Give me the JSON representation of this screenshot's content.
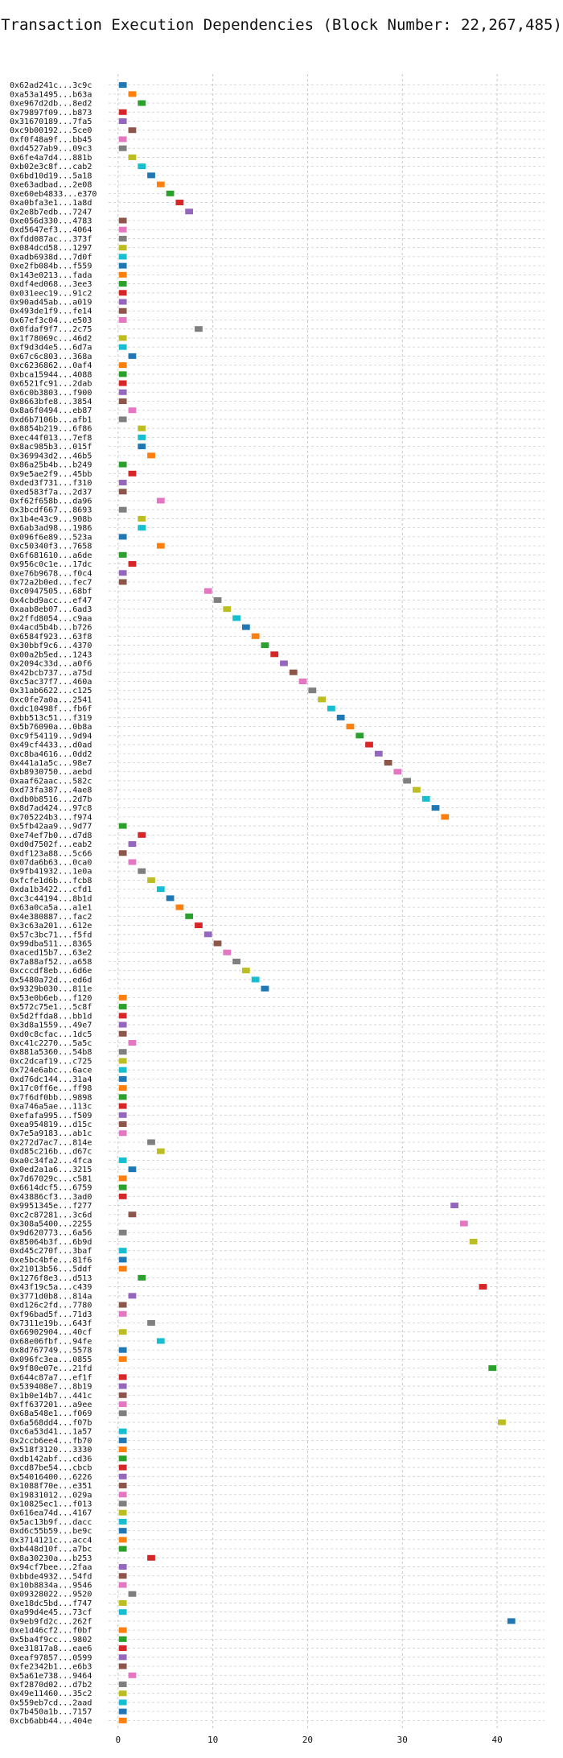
{
  "chart_data": {
    "type": "gantt",
    "title": "Transaction Execution Dependencies (Block Number: 22,267,485)",
    "xlim": [
      -1,
      45
    ],
    "xticks": [
      0,
      10,
      20,
      30,
      40
    ],
    "grid": true,
    "palette": [
      "#1f77b4",
      "#ff7f0e",
      "#2ca02c",
      "#d62728",
      "#9467bd",
      "#8c564b",
      "#e377c2",
      "#7f7f7f",
      "#bcbd22",
      "#17becf"
    ],
    "transactions": [
      {
        "label": "0x62ad241c...3c9c",
        "start": 0
      },
      {
        "label": "0xa53a1495...b63a",
        "start": 1
      },
      {
        "label": "0xe967d2db...8ed2",
        "start": 2
      },
      {
        "label": "0x79897f09...b873",
        "start": 0
      },
      {
        "label": "0x31670189...7fa5",
        "start": 0
      },
      {
        "label": "0xc9b00192...5ce0",
        "start": 1
      },
      {
        "label": "0xf0f48a9f...bb45",
        "start": 0
      },
      {
        "label": "0xd4527ab9...09c3",
        "start": 0
      },
      {
        "label": "0x6fe4a7d4...881b",
        "start": 1
      },
      {
        "label": "0xb02e3c8f...cab2",
        "start": 2
      },
      {
        "label": "0x6bd10d19...5a18",
        "start": 3
      },
      {
        "label": "0xe63adbad...2e08",
        "start": 4
      },
      {
        "label": "0xe60eb4833...e370",
        "start": 5
      },
      {
        "label": "0xa0bfa3e1...1a8d",
        "start": 6
      },
      {
        "label": "0x2e8b7edb...7247",
        "start": 7
      },
      {
        "label": "0xe056d330...4783",
        "start": 0
      },
      {
        "label": "0xd5647ef3...4064",
        "start": 0
      },
      {
        "label": "0xfdd087ac...373f",
        "start": 0
      },
      {
        "label": "0x084dcd58...1297",
        "start": 0
      },
      {
        "label": "0xadb6938d...7d0f",
        "start": 0
      },
      {
        "label": "0xe2fb084b...f559",
        "start": 0
      },
      {
        "label": "0x143e0213...fada",
        "start": 0
      },
      {
        "label": "0xdf4ed068...3ee3",
        "start": 0
      },
      {
        "label": "0x031eec19...91c2",
        "start": 0
      },
      {
        "label": "0x90ad45ab...a019",
        "start": 0
      },
      {
        "label": "0x493de1f9...fe14",
        "start": 0
      },
      {
        "label": "0x67ef3c04...e503",
        "start": 0
      },
      {
        "label": "0x0fdaf9f7...2c75",
        "start": 8
      },
      {
        "label": "0x1f78069c...46d2",
        "start": 0
      },
      {
        "label": "0xf9d3d4e5...6d7a",
        "start": 0
      },
      {
        "label": "0x67c6c803...368a",
        "start": 1
      },
      {
        "label": "0xc6236862...0af4",
        "start": 0
      },
      {
        "label": "0xbca15944...4088",
        "start": 0
      },
      {
        "label": "0x6521fc91...2dab",
        "start": 0
      },
      {
        "label": "0x6c0b3803...f900",
        "start": 0
      },
      {
        "label": "0x8663bfe8...3854",
        "start": 0
      },
      {
        "label": "0x8a6f0494...eb87",
        "start": 1
      },
      {
        "label": "0xd6b7106b...afb1",
        "start": 0
      },
      {
        "label": "0x8854b219...6f86",
        "start": 2
      },
      {
        "label": "0xec44f013...7ef8",
        "start": 2
      },
      {
        "label": "0x8ac985b3...015f",
        "start": 2
      },
      {
        "label": "0x369943d2...46b5",
        "start": 3
      },
      {
        "label": "0x86a25b4b...b249",
        "start": 0
      },
      {
        "label": "0x9e5ae2f9...45bb",
        "start": 1
      },
      {
        "label": "0xded3f731...f310",
        "start": 0
      },
      {
        "label": "0xed583f7a...2d37",
        "start": 0
      },
      {
        "label": "0xf62f658b...da96",
        "start": 4
      },
      {
        "label": "0x3bcdf667...8693",
        "start": 0
      },
      {
        "label": "0x1b4e43c9...908b",
        "start": 2
      },
      {
        "label": "0x6ab3ad98...1986",
        "start": 2
      },
      {
        "label": "0x096f6e89...523a",
        "start": 0
      },
      {
        "label": "0xc50340f3...7658",
        "start": 4
      },
      {
        "label": "0x6f681610...a6de",
        "start": 0
      },
      {
        "label": "0x956c0c1e...17dc",
        "start": 1
      },
      {
        "label": "0xe76b9678...f0c4",
        "start": 0
      },
      {
        "label": "0x72a2b0ed...fec7",
        "start": 0
      },
      {
        "label": "0xc0947505...68bf",
        "start": 9
      },
      {
        "label": "0x4cbd9acc...ef47",
        "start": 10
      },
      {
        "label": "0xaab8eb07...6ad3",
        "start": 11
      },
      {
        "label": "0x2ffd8054...c9aa",
        "start": 12
      },
      {
        "label": "0x4acd5b4b...b726",
        "start": 13
      },
      {
        "label": "0x6584f923...63f8",
        "start": 14
      },
      {
        "label": "0x30bbf9c6...4370",
        "start": 15
      },
      {
        "label": "0x00a2b5ed...1243",
        "start": 16
      },
      {
        "label": "0x2094c33d...a0f6",
        "start": 17
      },
      {
        "label": "0x42bcb737...a75d",
        "start": 18
      },
      {
        "label": "0xc5ac37f7...460a",
        "start": 19
      },
      {
        "label": "0x31ab6622...c125",
        "start": 20
      },
      {
        "label": "0xc0fe7a0a...2541",
        "start": 21
      },
      {
        "label": "0xdc10498f...fb6f",
        "start": 22
      },
      {
        "label": "0xbb513c51...f319",
        "start": 23
      },
      {
        "label": "0x5b76090a...0b8a",
        "start": 24
      },
      {
        "label": "0xc9f54119...9d94",
        "start": 25
      },
      {
        "label": "0x49cf4433...d0ad",
        "start": 26
      },
      {
        "label": "0xc8ba4616...0dd2",
        "start": 27
      },
      {
        "label": "0x441a1a5c...98e7",
        "start": 28
      },
      {
        "label": "0xb8930750...aebd",
        "start": 29
      },
      {
        "label": "0xaaf62aac...582c",
        "start": 30
      },
      {
        "label": "0xd73fa387...4ae8",
        "start": 31
      },
      {
        "label": "0xdb0b8516...2d7b",
        "start": 32
      },
      {
        "label": "0x8d7ad424...97c8",
        "start": 33
      },
      {
        "label": "0x705224b3...f974",
        "start": 34
      },
      {
        "label": "0x5fb42aa9...9d77",
        "start": 0
      },
      {
        "label": "0xe74ef7b0...d7d8",
        "start": 2
      },
      {
        "label": "0xd0d7502f...eab2",
        "start": 1
      },
      {
        "label": "0xdf123a88...5c66",
        "start": 0
      },
      {
        "label": "0x07da6b63...0ca0",
        "start": 1
      },
      {
        "label": "0x9fb41932...1e0a",
        "start": 2
      },
      {
        "label": "0xfcfe1d6b...fcb8",
        "start": 3
      },
      {
        "label": "0xda1b3422...cfd1",
        "start": 4
      },
      {
        "label": "0xc3c44194...8b1d",
        "start": 5
      },
      {
        "label": "0x63a0ca5a...a1e1",
        "start": 6
      },
      {
        "label": "0x4e380887...fac2",
        "start": 7
      },
      {
        "label": "0x3c63a201...612e",
        "start": 8
      },
      {
        "label": "0x57c3bc71...f5fd",
        "start": 9
      },
      {
        "label": "0x99dba511...8365",
        "start": 10
      },
      {
        "label": "0xaced15b7...63e2",
        "start": 11
      },
      {
        "label": "0x7a88af52...a658",
        "start": 12
      },
      {
        "label": "0xcccdf8eb...6d6e",
        "start": 13
      },
      {
        "label": "0x5480a72d...ed6d",
        "start": 14
      },
      {
        "label": "0x9329b030...811e",
        "start": 15
      },
      {
        "label": "0x53e0b6eb...f120",
        "start": 0
      },
      {
        "label": "0x572c75e1...5c8f",
        "start": 0
      },
      {
        "label": "0x5d2ffda8...bb1d",
        "start": 0
      },
      {
        "label": "0x3d8a1559...49e7",
        "start": 0
      },
      {
        "label": "0xd0c8cfac...1dc5",
        "start": 0
      },
      {
        "label": "0xc41c2270...5a5c",
        "start": 1
      },
      {
        "label": "0x881a5360...54b8",
        "start": 0
      },
      {
        "label": "0xc2dcaf19...c725",
        "start": 0
      },
      {
        "label": "0x724e6abc...6ace",
        "start": 0
      },
      {
        "label": "0xd76dc144...31a4",
        "start": 0
      },
      {
        "label": "0x17c0ff6e...ff98",
        "start": 0
      },
      {
        "label": "0x7f6df0bb...9898",
        "start": 0
      },
      {
        "label": "0xa746a5ae...113c",
        "start": 0
      },
      {
        "label": "0xefafa995...f509",
        "start": 0
      },
      {
        "label": "0xea954819...d15c",
        "start": 0
      },
      {
        "label": "0x7e5a9183...ab1c",
        "start": 0
      },
      {
        "label": "0x272d7ac7...814e",
        "start": 3
      },
      {
        "label": "0xd85c216b...d67c",
        "start": 4
      },
      {
        "label": "0xa0c34fa2...4fca",
        "start": 0
      },
      {
        "label": "0x0ed2a1a6...3215",
        "start": 1
      },
      {
        "label": "0x7d67029c...c581",
        "start": 0
      },
      {
        "label": "0x6614dcf5...6759",
        "start": 0
      },
      {
        "label": "0x43886cf3...3ad0",
        "start": 0
      },
      {
        "label": "0x9951345e...f277",
        "start": 35
      },
      {
        "label": "0xc2c87281...3c6d",
        "start": 1
      },
      {
        "label": "0x308a5400...2255",
        "start": 36
      },
      {
        "label": "0x9d620773...6a56",
        "start": 0
      },
      {
        "label": "0x85064b3f...6b9d",
        "start": 37
      },
      {
        "label": "0xd45c270f...3baf",
        "start": 0
      },
      {
        "label": "0xe5bc4bfe...81f6",
        "start": 0
      },
      {
        "label": "0x21013b56...5ddf",
        "start": 0
      },
      {
        "label": "0x1276f8e3...d513",
        "start": 2
      },
      {
        "label": "0x43f19c5a...c439",
        "start": 38
      },
      {
        "label": "0x3771d0b8...814a",
        "start": 1
      },
      {
        "label": "0xd126c2fd...7780",
        "start": 0
      },
      {
        "label": "0xf96bad5f...71d3",
        "start": 0
      },
      {
        "label": "0x7311e19b...643f",
        "start": 3
      },
      {
        "label": "0x66902904...40cf",
        "start": 0
      },
      {
        "label": "0x68e06fbf...94fe",
        "start": 4
      },
      {
        "label": "0x8d767749...5578",
        "start": 0
      },
      {
        "label": "0x096fc3ea...0855",
        "start": 0
      },
      {
        "label": "0x9f80e07e...21fd",
        "start": 39
      },
      {
        "label": "0x644c87a7...ef1f",
        "start": 0
      },
      {
        "label": "0x539408e7...8b19",
        "start": 0
      },
      {
        "label": "0x1b0e14b7...441c",
        "start": 0
      },
      {
        "label": "0xff637201...a9ee",
        "start": 0
      },
      {
        "label": "0x68a548e1...f069",
        "start": 0
      },
      {
        "label": "0x6a568dd4...f07b",
        "start": 40
      },
      {
        "label": "0xc6a53d41...1a57",
        "start": 0
      },
      {
        "label": "0x2ccb6ee4...fb70",
        "start": 0
      },
      {
        "label": "0x518f3120...3330",
        "start": 0
      },
      {
        "label": "0xdb142abf...cd36",
        "start": 0
      },
      {
        "label": "0xcd87be54...cbcb",
        "start": 0
      },
      {
        "label": "0x54016400...6226",
        "start": 0
      },
      {
        "label": "0x1088f70e...e351",
        "start": 0
      },
      {
        "label": "0x19831012...029a",
        "start": 0
      },
      {
        "label": "0x10825ec1...f013",
        "start": 0
      },
      {
        "label": "0x616ea74d...4167",
        "start": 0
      },
      {
        "label": "0x5ac13b9f...dacc",
        "start": 0
      },
      {
        "label": "0xd6c55b59...be9c",
        "start": 0
      },
      {
        "label": "0x3714121c...acc4",
        "start": 0
      },
      {
        "label": "0xb448d10f...a7bc",
        "start": 0
      },
      {
        "label": "0x8a30230a...b253",
        "start": 3
      },
      {
        "label": "0x94cf7bee...2faa",
        "start": 0
      },
      {
        "label": "0xbbde4932...54fd",
        "start": 0
      },
      {
        "label": "0x10b8834a...9546",
        "start": 0
      },
      {
        "label": "0x09328022...9520",
        "start": 1
      },
      {
        "label": "0xe18dc5bd...f747",
        "start": 0
      },
      {
        "label": "0xa99d4e45...73cf",
        "start": 0
      },
      {
        "label": "0x9eb9fd2c...262f",
        "start": 41
      },
      {
        "label": "0xe1d46cf2...f0bf",
        "start": 0
      },
      {
        "label": "0x5ba4f9cc...9802",
        "start": 0
      },
      {
        "label": "0xe31817a8...eae6",
        "start": 0
      },
      {
        "label": "0xeaf97857...0599",
        "start": 0
      },
      {
        "label": "0xfe2342b1...e6b3",
        "start": 0
      },
      {
        "label": "0x5a61e738...9464",
        "start": 1
      },
      {
        "label": "0xf2870d02...d7b2",
        "start": 0
      },
      {
        "label": "0x49e11460...35c2",
        "start": 0
      },
      {
        "label": "0x559eb7cd...2aad",
        "start": 0
      },
      {
        "label": "0x7b450a1b...7157",
        "start": 0
      },
      {
        "label": "0xcb6abb44...404e",
        "start": 0
      }
    ]
  }
}
